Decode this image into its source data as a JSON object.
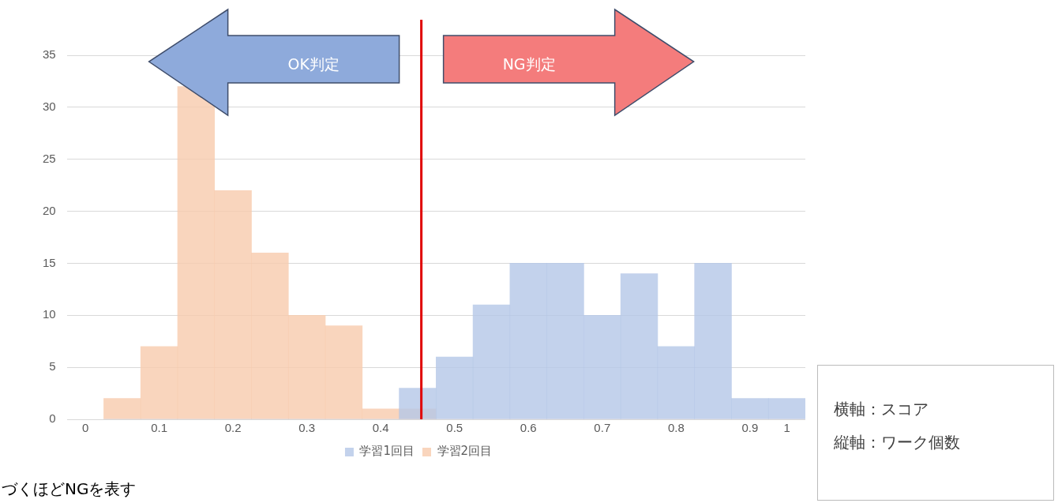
{
  "chart_data": {
    "type": "histogram",
    "bins": [
      0.025,
      0.075,
      0.125,
      0.175,
      0.225,
      0.275,
      0.325,
      0.375,
      0.425,
      0.475,
      0.525,
      0.575,
      0.625,
      0.675,
      0.725,
      0.775,
      0.825,
      0.875,
      0.925,
      0.975
    ],
    "series": [
      {
        "name": "学習1回目",
        "color": "#b4c7e7",
        "values": [
          0,
          0,
          0,
          0,
          0,
          0,
          0,
          0,
          3,
          6,
          11,
          15,
          15,
          10,
          14,
          7,
          15,
          2,
          2
        ]
      },
      {
        "name": "学習2回目",
        "color": "#f8cbad",
        "values": [
          2,
          7,
          32,
          22,
          16,
          10,
          9,
          1,
          1,
          0,
          0,
          0,
          0,
          0,
          0,
          0,
          0,
          0,
          0
        ]
      }
    ],
    "xlim": [
      -0.025,
      0.975
    ],
    "xticks": [
      0,
      0.1,
      0.2,
      0.3,
      0.4,
      0.5,
      0.6,
      0.7,
      0.8,
      0.9,
      {
        "value": 0.95,
        "label": "1"
      }
    ],
    "ylim": [
      0,
      35
    ],
    "yticks": [
      0,
      5,
      10,
      15,
      20,
      25,
      30,
      35
    ],
    "grid": "y",
    "legend": "bottom",
    "ref_lines": [
      {
        "axis": "x",
        "value": 0.455,
        "color": "#e00000"
      }
    ],
    "annotations": [
      "OK判定",
      "NG判定",
      "づくほどNGを表す",
      "横軸：スコア",
      "縦軸：ワーク個数"
    ]
  }
}
